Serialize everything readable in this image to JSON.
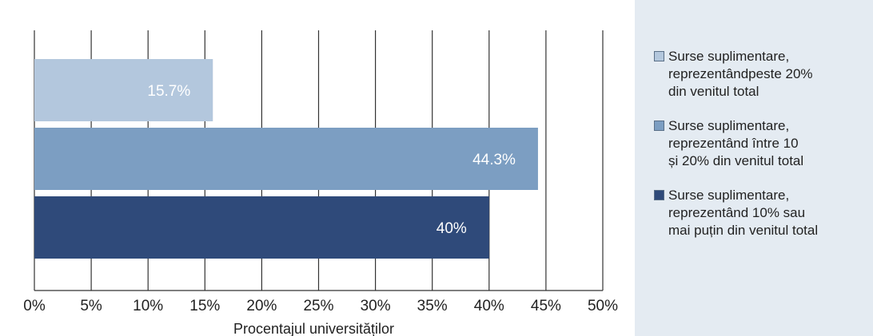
{
  "chart_data": {
    "type": "bar",
    "orientation": "horizontal",
    "xlabel": "Procentajul universităților",
    "x_ticks": [
      "0%",
      "5%",
      "10%",
      "15%",
      "20%",
      "25%",
      "30%",
      "35%",
      "40%",
      "45%",
      "50%"
    ],
    "xlim": [
      0,
      50
    ],
    "grid": "vertical",
    "legend_position": "right",
    "bars": [
      {
        "series": "Surse suplimentare,\nreprezentândpeste 20%\ndin venitul total",
        "value": 15.7,
        "label": "15.7%",
        "color": "#b3c7dd"
      },
      {
        "series": "Surse suplimentare,\nreprezentând între 10\nși 20% din venitul total",
        "value": 44.3,
        "label": "44.3%",
        "color": "#7c9ec2"
      },
      {
        "series": "Surse suplimentare,\nreprezentând 10% sau\nmai puțin din venitul total",
        "value": 40,
        "label": "40%",
        "color": "#2f4a7a"
      }
    ]
  },
  "legend": [
    {
      "label": "Surse suplimentare,\nreprezentândpeste 20%\ndin venitul total",
      "color": "#b3c7dd"
    },
    {
      "label": "Surse suplimentare,\nreprezentând între 10\nși 20% din venitul total",
      "color": "#7c9ec2"
    },
    {
      "label": "Surse suplimentare,\nreprezentând 10% sau\nmai puțin din venitul total",
      "color": "#2f4a7a"
    }
  ]
}
